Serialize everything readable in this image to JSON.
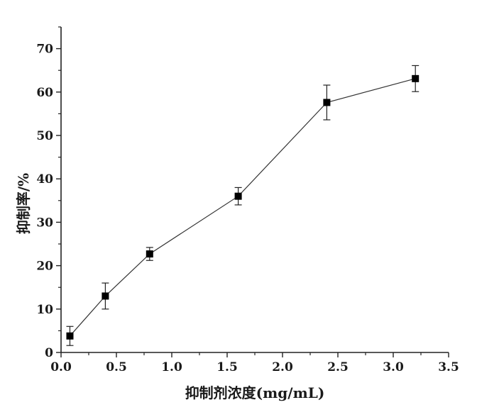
{
  "chart_data": {
    "type": "line",
    "xlabel": "抑制剂浓度(mg/mL)",
    "ylabel": "抑制率/%",
    "xlim": [
      0.0,
      3.5
    ],
    "ylim": [
      0,
      75
    ],
    "xticks": [
      0.0,
      0.5,
      1.0,
      1.5,
      2.0,
      2.5,
      3.0,
      3.5
    ],
    "xtick_labels": [
      "0.0",
      "0.5",
      "1.0",
      "1.5",
      "2.0",
      "2.5",
      "3.0",
      "3.5"
    ],
    "yticks": [
      0,
      10,
      20,
      30,
      40,
      50,
      60,
      70
    ],
    "ytick_labels": [
      "0",
      "10",
      "20",
      "30",
      "40",
      "50",
      "60",
      "70"
    ],
    "grid": false,
    "series": [
      {
        "marker": "square",
        "color": "#000000",
        "x": [
          0.08,
          0.4,
          0.8,
          1.6,
          2.4,
          3.2
        ],
        "y": [
          3.8,
          13.0,
          22.7,
          36.0,
          57.6,
          63.1
        ],
        "error": [
          2.2,
          3.0,
          1.5,
          2.0,
          4.0,
          3.0
        ]
      }
    ]
  }
}
